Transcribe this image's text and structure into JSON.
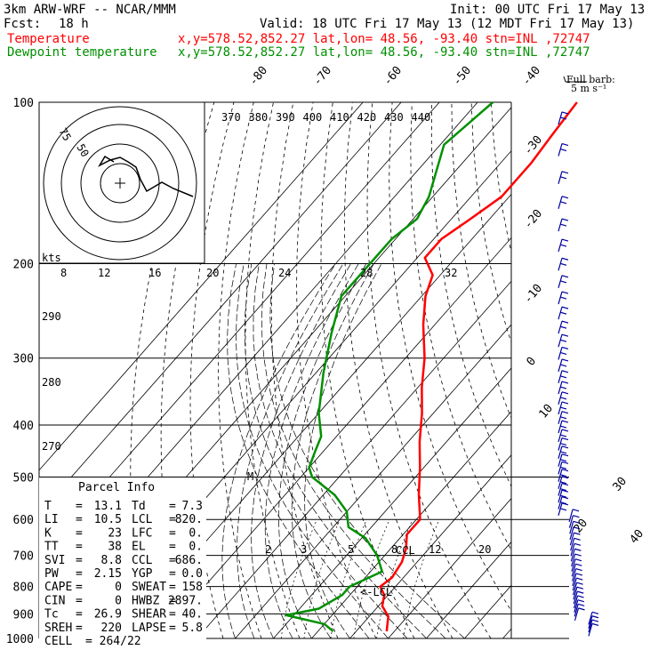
{
  "header": {
    "model": "3km ARW-WRF -- NCAR/MMM",
    "init": "Init: 00 UTC Fri 17 May 13",
    "fcst_label": "Fcst:",
    "fcst_value": "18 h",
    "valid": "Valid: 18 UTC Fri 17 May 13 (12 MDT Fri 17 May 13)",
    "temp_label": "Temperature",
    "dew_label": "Dewpoint temperature",
    "location": "x,y=578.52,852.27   lat,lon= 48.56, -93.40   stn=INL ,72747",
    "barb_key_title": "Full barb:",
    "barb_key_value": "5 m s⁻¹"
  },
  "colors": {
    "temperature": "#ff0000",
    "dewpoint": "#009000",
    "barbs": "#0000a0",
    "grid": "#000000"
  },
  "chart_data": {
    "type": "line",
    "subtype": "skew-T log-P",
    "pressure_ticks": [
      100,
      200,
      300,
      400,
      500,
      600,
      700,
      800,
      900,
      1000
    ],
    "pressure_tick_labels": [
      "100",
      "200",
      "300",
      "400",
      "500",
      "600",
      "700",
      "800",
      "900",
      "1000"
    ],
    "isotherm_labels": [
      "-80",
      "-70",
      "-60",
      "-50",
      "-40",
      "-30",
      "-20",
      "-10",
      "0",
      "10",
      "20",
      "30",
      "40"
    ],
    "theta_labels": [
      "370",
      "380",
      "390",
      "400",
      "410",
      "420",
      "430",
      "440"
    ],
    "theta_left_labels": [
      "290",
      "280",
      "270"
    ],
    "mixing_ratio_labels": [
      "2",
      "3",
      "5",
      "8",
      "12",
      "20"
    ],
    "hodograph_speed_labels": [
      "8",
      "12",
      "16",
      "20",
      "24",
      "28",
      "32"
    ],
    "hodograph_ring_labels": [
      "75",
      "50"
    ],
    "hodograph_units": "kts",
    "lcl_marker": "<-LCL",
    "ccl_marker": "CCL",
    "m_marker": "M",
    "series": [
      {
        "name": "Temperature",
        "color": "#ff0000",
        "points": [
          [
            100,
            -54
          ],
          [
            115,
            -53
          ],
          [
            130,
            -52
          ],
          [
            150,
            -52
          ],
          [
            165,
            -55
          ],
          [
            180,
            -58
          ],
          [
            195,
            -58
          ],
          [
            210,
            -52
          ],
          [
            230,
            -49
          ],
          [
            260,
            -43
          ],
          [
            300,
            -35
          ],
          [
            340,
            -29
          ],
          [
            380,
            -23
          ],
          [
            430,
            -17
          ],
          [
            480,
            -11
          ],
          [
            540,
            -5
          ],
          [
            600,
            1
          ],
          [
            640,
            1
          ],
          [
            680,
            4
          ],
          [
            720,
            6
          ],
          [
            770,
            7
          ],
          [
            800,
            6
          ],
          [
            830,
            9
          ],
          [
            870,
            11
          ],
          [
            910,
            15
          ],
          [
            950,
            17
          ],
          [
            970,
            18
          ]
        ]
      },
      {
        "name": "Dewpoint temperature",
        "color": "#009000",
        "points": [
          [
            100,
            -76
          ],
          [
            120,
            -79
          ],
          [
            150,
            -71
          ],
          [
            165,
            -69
          ],
          [
            180,
            -71
          ],
          [
            200,
            -71
          ],
          [
            230,
            -71
          ],
          [
            270,
            -65
          ],
          [
            320,
            -58
          ],
          [
            380,
            -50
          ],
          [
            420,
            -44
          ],
          [
            450,
            -42
          ],
          [
            480,
            -40
          ],
          [
            500,
            -37
          ],
          [
            540,
            -27
          ],
          [
            580,
            -20
          ],
          [
            620,
            -16
          ],
          [
            650,
            -9
          ],
          [
            700,
            -2
          ],
          [
            750,
            3
          ],
          [
            800,
            -2
          ],
          [
            830,
            -2
          ],
          [
            880,
            -5
          ],
          [
            905,
            -12
          ],
          [
            940,
            0
          ],
          [
            970,
            4
          ]
        ]
      }
    ],
    "parcel_info": {
      "title": "Parcel Info",
      "rows": [
        [
          "T",
          "13.1",
          "Td",
          "7.3"
        ],
        [
          "LI",
          "10.5",
          "LCL",
          "820."
        ],
        [
          "K",
          "23",
          "LFC",
          "0."
        ],
        [
          "TT",
          "38",
          "EL",
          "0."
        ],
        [
          "SVI",
          "8.8",
          "CCL",
          "686."
        ],
        [
          "PW",
          "2.15",
          "YGP",
          "0.0"
        ],
        [
          "CAPE",
          "0",
          "SWEAT",
          "158"
        ],
        [
          "CIN",
          "0",
          "HWBZ",
          "2897."
        ],
        [
          "Tc",
          "26.9",
          "SHEAR",
          "40."
        ],
        [
          "SREH",
          "220",
          "LAPSE",
          "5.8"
        ],
        [
          "CELL",
          "264/22",
          "",
          ""
        ]
      ]
    }
  }
}
